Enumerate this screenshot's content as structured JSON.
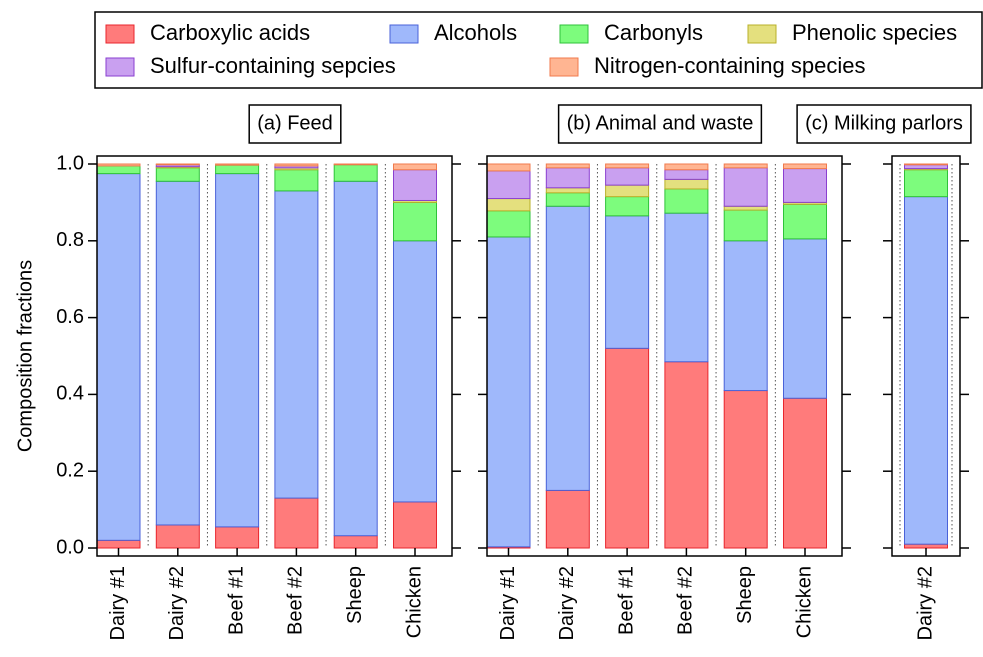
{
  "chart_data": {
    "type": "stacked_bar",
    "ylabel": "Composition fractions",
    "ylim": [
      0,
      1
    ],
    "yticks": [
      {
        "value": 0,
        "label": "0.0"
      },
      0.2,
      0.4,
      0.6,
      0.8,
      {
        "value": 1,
        "label": "1.0"
      }
    ],
    "groups": [
      {
        "title": "(a) Feed",
        "categories": [
          "Dairy #1",
          "Dairy #2",
          "Beef #1",
          "Beef #2",
          "Sheep",
          "Chicken"
        ]
      },
      {
        "title": "(b) Animal and waste",
        "categories": [
          "Dairy #1",
          "Dairy #2",
          "Beef #1",
          "Beef #2",
          "Sheep",
          "Chicken"
        ]
      },
      {
        "title": "(c) Milking parlors",
        "categories": [
          "Dairy #2"
        ]
      }
    ],
    "series": [
      {
        "name": "Carboxylic acids",
        "color": "#ff7b7b",
        "edgecolor": "#e8262d",
        "values": [
          0.02,
          0.06,
          0.055,
          0.13,
          0.032,
          0.12,
          0.003,
          0.15,
          0.52,
          0.485,
          0.41,
          0.39,
          0.01
        ]
      },
      {
        "name": "Alcohols",
        "color": "#9fb8fb",
        "edgecolor": "#4a62d8",
        "values": [
          0.955,
          0.895,
          0.92,
          0.8,
          0.923,
          0.68,
          0.807,
          0.74,
          0.345,
          0.387,
          0.39,
          0.415,
          0.905
        ]
      },
      {
        "name": "Carbonyls",
        "color": "#7dfc7d",
        "edgecolor": "#2fc23a",
        "values": [
          0.02,
          0.035,
          0.022,
          0.055,
          0.043,
          0.1,
          0.068,
          0.035,
          0.05,
          0.063,
          0.08,
          0.09,
          0.07
        ]
      },
      {
        "name": "Phenolic species",
        "color": "#e4e07e",
        "edgecolor": "#b8b02a",
        "values": [
          0,
          0.003,
          0,
          0.005,
          0,
          0.005,
          0.032,
          0.013,
          0.03,
          0.025,
          0.01,
          0.005,
          0.003
        ]
      },
      {
        "name": "Sulfur-containing sepcies",
        "color": "#c9a0f0",
        "edgecolor": "#8a3fd0",
        "values": [
          0,
          0.005,
          0,
          0.005,
          0,
          0.08,
          0.072,
          0.052,
          0.045,
          0.025,
          0.1,
          0.088,
          0.01
        ]
      },
      {
        "name": "Nitrogen-containing species",
        "color": "#ffb592",
        "edgecolor": "#f07a4c",
        "values": [
          0.005,
          0.002,
          0.003,
          0.005,
          0.002,
          0.015,
          0.018,
          0.01,
          0.01,
          0.015,
          0.01,
          0.012,
          0.002
        ]
      }
    ]
  }
}
